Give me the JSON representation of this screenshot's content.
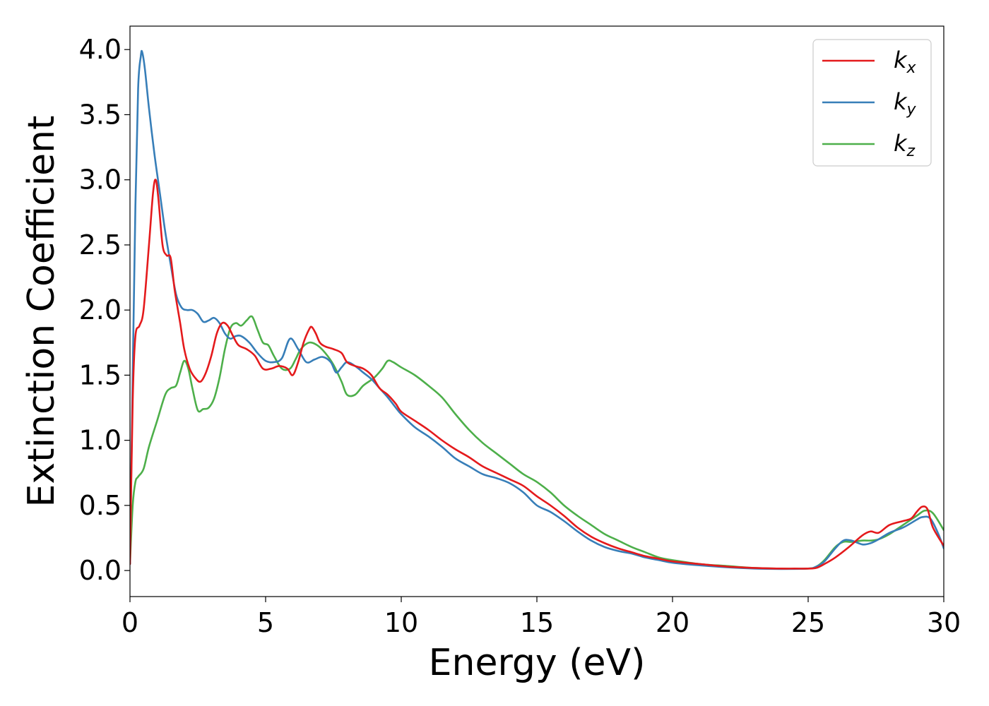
{
  "chart_data": {
    "type": "line",
    "xlabel": "Energy (eV)",
    "ylabel": "Extinction Coefficient",
    "xlim": [
      0,
      30
    ],
    "ylim": [
      -0.2,
      4.18
    ],
    "xticks": [
      0,
      5,
      10,
      15,
      20,
      25,
      30
    ],
    "xtick_labels": [
      "0",
      "5",
      "10",
      "15",
      "20",
      "25",
      "30"
    ],
    "yticks": [
      0.0,
      0.5,
      1.0,
      1.5,
      2.0,
      2.5,
      3.0,
      3.5,
      4.0
    ],
    "ytick_labels": [
      "0.0",
      "0.5",
      "1.0",
      "1.5",
      "2.0",
      "2.5",
      "3.0",
      "3.5",
      "4.0"
    ],
    "grid": false,
    "legend_position": "top-right",
    "series": [
      {
        "name": "k",
        "subscript": "x",
        "color": "#e41a1c",
        "x": [
          0,
          0.1,
          0.2,
          0.35,
          0.5,
          0.7,
          0.85,
          0.95,
          1.05,
          1.2,
          1.35,
          1.5,
          1.65,
          1.85,
          2.0,
          2.2,
          2.4,
          2.6,
          2.8,
          3.0,
          3.2,
          3.4,
          3.6,
          3.8,
          4.0,
          4.3,
          4.6,
          4.9,
          5.2,
          5.5,
          5.8,
          6.0,
          6.2,
          6.4,
          6.6,
          6.7,
          6.85,
          7.0,
          7.2,
          7.5,
          7.8,
          8.0,
          8.3,
          8.6,
          8.9,
          9.2,
          9.5,
          9.8,
          10.0,
          10.5,
          11.0,
          11.5,
          12.0,
          12.5,
          13.0,
          13.5,
          14.0,
          14.5,
          15.0,
          15.5,
          16.0,
          16.5,
          17.0,
          17.5,
          18.0,
          18.5,
          19.0,
          19.5,
          20.0,
          21.0,
          22.0,
          23.0,
          24.0,
          24.5,
          25.0,
          25.3,
          25.6,
          26.0,
          26.5,
          27.0,
          27.3,
          27.6,
          28.0,
          28.5,
          28.8,
          29.0,
          29.2,
          29.4,
          29.6,
          30.0
        ],
        "y": [
          0.05,
          1.3,
          1.8,
          1.88,
          2.0,
          2.5,
          2.9,
          3.0,
          2.85,
          2.5,
          2.42,
          2.4,
          2.15,
          1.9,
          1.7,
          1.55,
          1.48,
          1.45,
          1.52,
          1.65,
          1.82,
          1.9,
          1.88,
          1.8,
          1.73,
          1.7,
          1.65,
          1.55,
          1.55,
          1.57,
          1.55,
          1.5,
          1.6,
          1.75,
          1.85,
          1.87,
          1.82,
          1.75,
          1.72,
          1.7,
          1.67,
          1.6,
          1.57,
          1.55,
          1.5,
          1.4,
          1.35,
          1.28,
          1.22,
          1.15,
          1.08,
          1.0,
          0.93,
          0.87,
          0.8,
          0.75,
          0.7,
          0.65,
          0.57,
          0.5,
          0.42,
          0.33,
          0.26,
          0.21,
          0.17,
          0.14,
          0.11,
          0.09,
          0.07,
          0.05,
          0.03,
          0.02,
          0.015,
          0.015,
          0.015,
          0.02,
          0.05,
          0.1,
          0.18,
          0.27,
          0.3,
          0.29,
          0.35,
          0.38,
          0.4,
          0.45,
          0.49,
          0.47,
          0.33,
          0.19
        ]
      },
      {
        "name": "k",
        "subscript": "y",
        "color": "#377eb8",
        "x": [
          0,
          0.1,
          0.2,
          0.3,
          0.4,
          0.45,
          0.55,
          0.7,
          0.9,
          1.1,
          1.3,
          1.5,
          1.7,
          1.9,
          2.1,
          2.3,
          2.5,
          2.7,
          2.9,
          3.1,
          3.3,
          3.5,
          3.7,
          3.9,
          4.1,
          4.4,
          4.7,
          5.0,
          5.3,
          5.6,
          5.9,
          6.2,
          6.5,
          6.8,
          7.1,
          7.4,
          7.6,
          7.8,
          8.0,
          8.3,
          8.6,
          8.9,
          9.2,
          9.5,
          9.8,
          10.0,
          10.5,
          11.0,
          11.5,
          12.0,
          12.5,
          13.0,
          13.5,
          14.0,
          14.5,
          15.0,
          15.5,
          16.0,
          16.5,
          17.0,
          17.5,
          18.0,
          18.5,
          19.0,
          19.5,
          20.0,
          21.0,
          22.0,
          23.0,
          24.0,
          25.0,
          25.3,
          25.6,
          26.0,
          26.3,
          26.6,
          27.0,
          27.3,
          27.6,
          28.0,
          28.5,
          29.0,
          29.2,
          29.5,
          29.8,
          30.0
        ],
        "y": [
          0.05,
          1.5,
          2.8,
          3.7,
          3.95,
          3.98,
          3.85,
          3.55,
          3.2,
          2.9,
          2.6,
          2.35,
          2.12,
          2.02,
          2.0,
          2.0,
          1.97,
          1.91,
          1.92,
          1.94,
          1.9,
          1.82,
          1.78,
          1.8,
          1.8,
          1.75,
          1.67,
          1.61,
          1.6,
          1.63,
          1.78,
          1.7,
          1.6,
          1.62,
          1.64,
          1.6,
          1.52,
          1.56,
          1.6,
          1.57,
          1.52,
          1.47,
          1.4,
          1.33,
          1.25,
          1.2,
          1.1,
          1.03,
          0.95,
          0.86,
          0.8,
          0.74,
          0.71,
          0.67,
          0.6,
          0.5,
          0.45,
          0.38,
          0.3,
          0.23,
          0.18,
          0.15,
          0.13,
          0.1,
          0.08,
          0.06,
          0.04,
          0.025,
          0.015,
          0.012,
          0.015,
          0.03,
          0.07,
          0.17,
          0.23,
          0.23,
          0.2,
          0.21,
          0.24,
          0.29,
          0.33,
          0.39,
          0.41,
          0.4,
          0.28,
          0.17
        ]
      },
      {
        "name": "k",
        "subscript": "z",
        "color": "#4daf4a",
        "x": [
          0,
          0.1,
          0.2,
          0.3,
          0.5,
          0.7,
          1.0,
          1.3,
          1.5,
          1.7,
          1.85,
          2.0,
          2.15,
          2.3,
          2.5,
          2.7,
          2.9,
          3.1,
          3.3,
          3.5,
          3.7,
          3.9,
          4.1,
          4.3,
          4.5,
          4.7,
          4.9,
          5.1,
          5.3,
          5.6,
          5.9,
          6.1,
          6.3,
          6.6,
          6.9,
          7.2,
          7.5,
          7.8,
          8.0,
          8.3,
          8.6,
          9.0,
          9.3,
          9.5,
          9.7,
          10.0,
          10.5,
          11.0,
          11.5,
          12.0,
          12.5,
          13.0,
          13.5,
          14.0,
          14.5,
          15.0,
          15.5,
          16.0,
          16.5,
          17.0,
          17.5,
          18.0,
          18.5,
          19.0,
          19.5,
          20.0,
          21.0,
          22.0,
          23.0,
          24.0,
          25.0,
          25.3,
          25.6,
          26.0,
          26.3,
          26.6,
          27.0,
          27.3,
          27.6,
          28.0,
          28.5,
          29.0,
          29.3,
          29.6,
          30.0
        ],
        "y": [
          0.05,
          0.5,
          0.68,
          0.72,
          0.78,
          0.95,
          1.15,
          1.35,
          1.4,
          1.42,
          1.52,
          1.61,
          1.55,
          1.4,
          1.23,
          1.24,
          1.25,
          1.32,
          1.48,
          1.7,
          1.86,
          1.9,
          1.88,
          1.92,
          1.95,
          1.85,
          1.75,
          1.73,
          1.65,
          1.55,
          1.55,
          1.62,
          1.7,
          1.75,
          1.73,
          1.67,
          1.58,
          1.45,
          1.35,
          1.35,
          1.42,
          1.48,
          1.55,
          1.61,
          1.6,
          1.56,
          1.5,
          1.42,
          1.33,
          1.2,
          1.08,
          0.98,
          0.9,
          0.82,
          0.74,
          0.68,
          0.6,
          0.5,
          0.42,
          0.35,
          0.28,
          0.23,
          0.18,
          0.14,
          0.1,
          0.08,
          0.05,
          0.035,
          0.02,
          0.015,
          0.015,
          0.03,
          0.08,
          0.18,
          0.22,
          0.22,
          0.23,
          0.23,
          0.24,
          0.28,
          0.35,
          0.42,
          0.46,
          0.44,
          0.31
        ]
      }
    ]
  }
}
